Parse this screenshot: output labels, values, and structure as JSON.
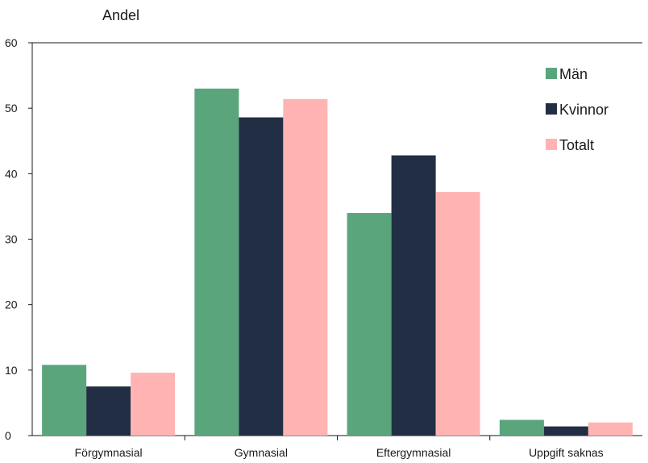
{
  "chart_data": {
    "type": "bar",
    "ylabel": "Andel",
    "xlabel": "",
    "categories": [
      "Förgymnasial",
      "Gymnasial",
      "Eftergymnasial",
      "Uppgift saknas"
    ],
    "series": [
      {
        "name": "Män",
        "color": "#5ba57d",
        "values": [
          10.8,
          53.0,
          34.0,
          2.4
        ]
      },
      {
        "name": "Kvinnor",
        "color": "#222e43",
        "values": [
          7.5,
          48.6,
          42.8,
          1.4
        ]
      },
      {
        "name": "Totalt",
        "color": "#ffb3b3",
        "values": [
          9.6,
          51.4,
          37.2,
          2.0
        ]
      }
    ],
    "ylim": [
      0,
      60
    ],
    "yticks": [
      0,
      10,
      20,
      30,
      40,
      50,
      60
    ],
    "grid": false,
    "legend": "top-right"
  }
}
